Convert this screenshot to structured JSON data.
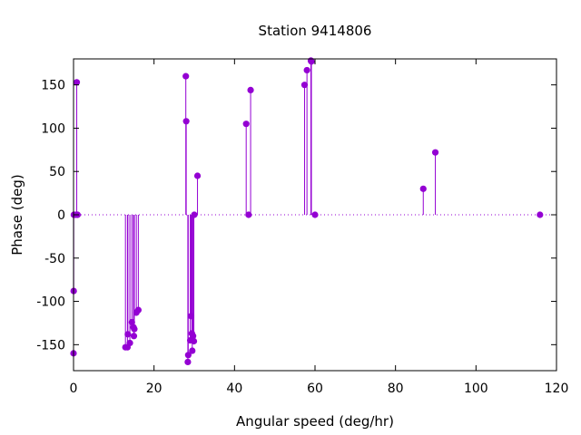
{
  "chart_data": {
    "type": "scatter",
    "style": "impulses-with-points",
    "title": "Station 9414806",
    "xlabel": "Angular speed (deg/hr)",
    "ylabel": "Phase (deg)",
    "xlim": [
      0,
      120
    ],
    "ylim": [
      -180,
      180
    ],
    "xticks": [
      0,
      20,
      40,
      60,
      80,
      100,
      120
    ],
    "yticks": [
      -150,
      -100,
      -50,
      0,
      50,
      100,
      150
    ],
    "zero_line": true,
    "grid": false,
    "series_color": "#9400d3",
    "points": [
      {
        "x": 0.0,
        "y": -160
      },
      {
        "x": 0.04,
        "y": -88
      },
      {
        "x": 0.08,
        "y": 0
      },
      {
        "x": 0.5,
        "y": 0
      },
      {
        "x": 0.8,
        "y": 153
      },
      {
        "x": 1.0,
        "y": 0
      },
      {
        "x": 12.9,
        "y": -153
      },
      {
        "x": 13.4,
        "y": -153
      },
      {
        "x": 13.5,
        "y": -138
      },
      {
        "x": 14.0,
        "y": -148
      },
      {
        "x": 14.5,
        "y": -124
      },
      {
        "x": 14.9,
        "y": -130
      },
      {
        "x": 15.0,
        "y": -140
      },
      {
        "x": 15.1,
        "y": -132
      },
      {
        "x": 15.6,
        "y": -113
      },
      {
        "x": 16.1,
        "y": -110
      },
      {
        "x": 27.9,
        "y": 160
      },
      {
        "x": 28.0,
        "y": 108
      },
      {
        "x": 28.4,
        "y": -170
      },
      {
        "x": 28.5,
        "y": -162
      },
      {
        "x": 29.0,
        "y": -145
      },
      {
        "x": 29.2,
        "y": -117
      },
      {
        "x": 29.4,
        "y": -137
      },
      {
        "x": 29.5,
        "y": -157
      },
      {
        "x": 29.7,
        "y": -140
      },
      {
        "x": 29.9,
        "y": -146
      },
      {
        "x": 30.0,
        "y": 0
      },
      {
        "x": 30.8,
        "y": 45
      },
      {
        "x": 42.9,
        "y": 105
      },
      {
        "x": 43.5,
        "y": 0
      },
      {
        "x": 44.0,
        "y": 144
      },
      {
        "x": 57.4,
        "y": 150
      },
      {
        "x": 58.0,
        "y": 167
      },
      {
        "x": 58.98,
        "y": 178
      },
      {
        "x": 59.1,
        "y": 177
      },
      {
        "x": 60.0,
        "y": 0
      },
      {
        "x": 86.9,
        "y": 30
      },
      {
        "x": 89.9,
        "y": 72
      },
      {
        "x": 115.9,
        "y": 0
      }
    ]
  }
}
